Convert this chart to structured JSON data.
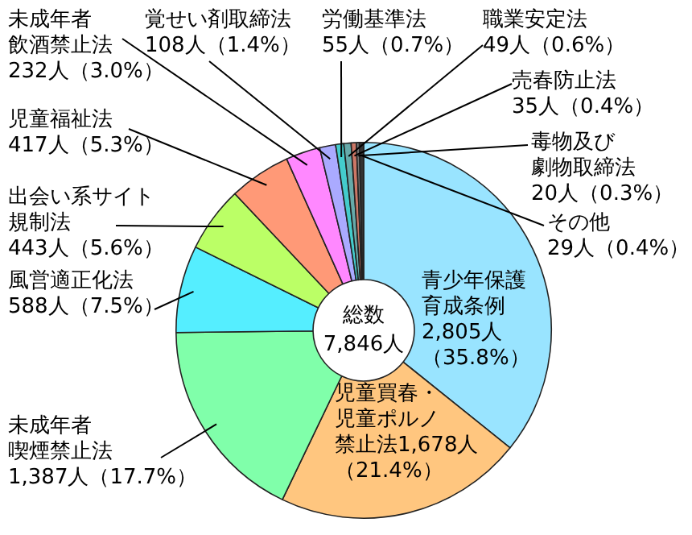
{
  "chart_data": {
    "type": "donut",
    "categories": [
      "青少年保護育成条例",
      "児童買春・児童ポルノ禁止法",
      "未成年者喫煙禁止法",
      "風営適正化法",
      "出会い系サイト規制法",
      "児童福祉法",
      "未成年者飲酒禁止法",
      "覚せい剤取締法",
      "労働基準法",
      "職業安定法",
      "売春防止法",
      "毒物及び劇物取締法",
      "その他"
    ],
    "values": [
      2805,
      1678,
      1387,
      588,
      443,
      417,
      232,
      108,
      55,
      49,
      35,
      20,
      29
    ],
    "value_labels": [
      "2,805人（35.8%）",
      "1,678人（21.4%）",
      "1,387人（17.7%）",
      "588人（7.5%）",
      "443人（5.6%）",
      "417人（5.3%）",
      "232人（3.0%）",
      "108人（1.4%）",
      "55人（0.7%）",
      "49人（0.6%）",
      "35人（0.4%）",
      "20人（0.3%）",
      "29人（0.4%）"
    ],
    "colors": [
      "#99e4ff",
      "#ffc67f",
      "#80ffaa",
      "#55eeff",
      "#bbff66",
      "#ff9977",
      "#ff88ff",
      "#aaaaff",
      "#44cccc",
      "#66aaaa",
      "#cc7766",
      "#777777",
      "#333333"
    ],
    "annotations": [
      "総数",
      "7,846人"
    ],
    "legend": false
  }
}
